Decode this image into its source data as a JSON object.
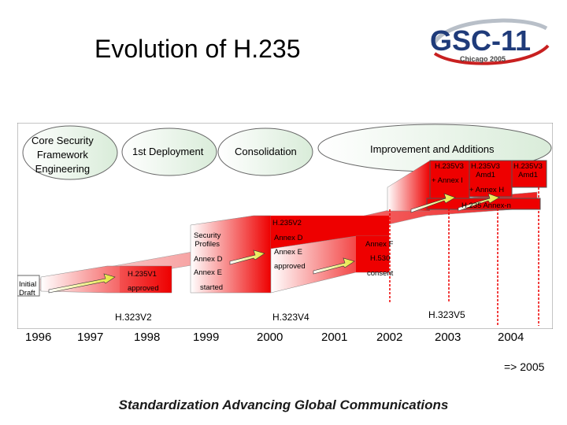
{
  "title": "Evolution of H.235",
  "logo": {
    "main": "GSC-11",
    "sub": "Chicago 2005"
  },
  "phases": {
    "core": "Core Security\nFramework\nEngineering",
    "deploy": "1st Deployment",
    "consolidation": "Consolidation",
    "improvement": "Improvement and Additions"
  },
  "boxes": {
    "v3": "H.235V3",
    "annex_i": "+ Annex I",
    "v3_amd1_a": "H.235V3\nAmd1",
    "v3_amd1_b": "H.235V3\nAmd1",
    "annex_h": "+ Annex H",
    "annexes": "H.235 Annex-n",
    "v2": "H.235V2",
    "security_profiles": "Security\nProfiles",
    "annex_d_a": "Annex D",
    "annex_e_a": "Annex E",
    "annex_d_b": "Annex D",
    "annex_e_b": "Annex E",
    "annex_f": "Annex F",
    "h530": "H.530",
    "approved_a": "approved",
    "consent": "consent",
    "v1": "H.235V1",
    "approved_b": "approved",
    "started": "started",
    "initial_draft": "Initial\nDraft"
  },
  "h323": {
    "v2": "H.323V2",
    "v4": "H.323V4",
    "v5": "H.323V5"
  },
  "years": [
    "1996",
    "1997",
    "1998",
    "1999",
    "2000",
    "2001",
    "2002",
    "2003",
    "2004"
  ],
  "next_year": "=> 2005",
  "footer": "Standardization Advancing Global Communications",
  "colors": {
    "red": "#ee0000",
    "dark_red": "#b00000",
    "pink": "#f7b3b3",
    "arrow_yellow": "#f2ef5a"
  }
}
